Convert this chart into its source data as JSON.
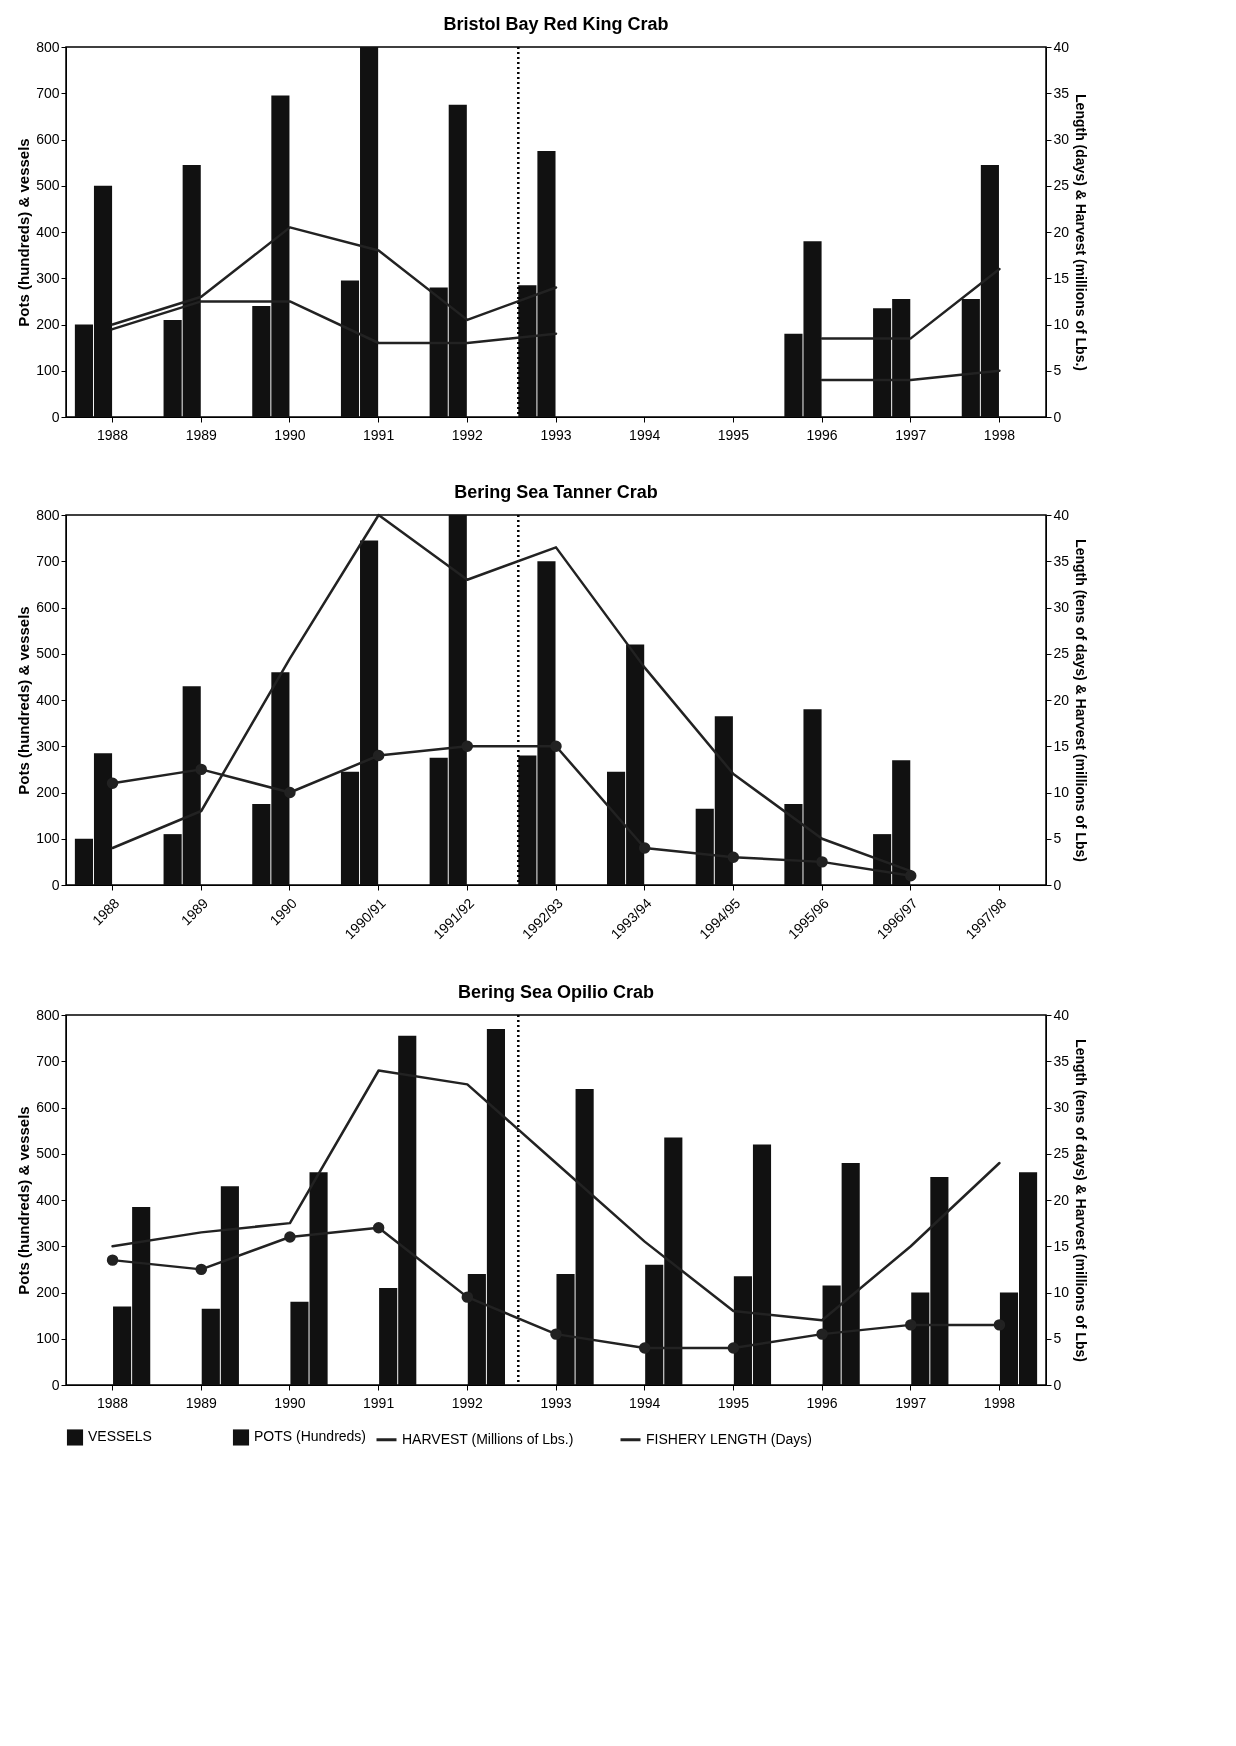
{
  "chart_data": [
    {
      "type": "bar",
      "title": "Bristol Bay Red King Crab",
      "ylabel": "Pots (hundreds) & vessels",
      "y2label": "Length (days) & Harvest (millions of Lbs.)",
      "categories": [
        "1988",
        "1989",
        "1990",
        "1991",
        "1992",
        "1993",
        "1994",
        "1995",
        "1996",
        "1997",
        "1998"
      ],
      "ylim": [
        0,
        800
      ],
      "yticks": [
        0,
        100,
        200,
        300,
        400,
        500,
        600,
        700,
        800
      ],
      "y2lim": [
        0,
        40
      ],
      "y2ticks": [
        0,
        5,
        10,
        15,
        20,
        25,
        30,
        35,
        40
      ],
      "series": [
        {
          "type": "bar",
          "color": "#111111",
          "values": [
            200,
            210,
            240,
            295,
            280,
            285,
            null,
            null,
            180,
            235,
            255
          ]
        },
        {
          "type": "bar",
          "color": "#111111",
          "values": [
            500,
            545,
            695,
            800,
            675,
            575,
            null,
            null,
            380,
            255,
            545
          ]
        },
        {
          "type": "line",
          "axis": "y2",
          "color": "#222222",
          "values": [
            10,
            13,
            20.5,
            18,
            10.5,
            14,
            null,
            null,
            8.5,
            8.5,
            16
          ]
        },
        {
          "type": "line",
          "axis": "y2",
          "color": "#222222",
          "values": [
            9.5,
            12.5,
            12.5,
            8,
            8,
            9,
            null,
            null,
            4,
            4,
            5
          ]
        }
      ],
      "ref_lines": [
        {
          "axis": "x",
          "value": "1993",
          "line_style": "dotted",
          "color": "#000000"
        }
      ]
    },
    {
      "type": "bar",
      "title": "Bering Sea Tanner Crab",
      "ylabel": "Pots (hundreds) & vessels",
      "y2label": "Length (tens of days) & Harvest (millions of Lbs)",
      "categories": [
        "1988",
        "1989",
        "1990",
        "1990/91",
        "1991/92",
        "1992/93",
        "1993/94",
        "1994/95",
        "1995/96",
        "1996/97",
        "1997/98"
      ],
      "ylim": [
        0,
        800
      ],
      "yticks": [
        0,
        100,
        200,
        300,
        400,
        500,
        600,
        700,
        800
      ],
      "y2lim": [
        0,
        40
      ],
      "y2ticks": [
        0,
        5,
        10,
        15,
        20,
        25,
        30,
        35,
        40
      ],
      "series": [
        {
          "type": "bar",
          "color": "#111111",
          "values": [
            100,
            110,
            175,
            245,
            275,
            280,
            245,
            165,
            175,
            110,
            null
          ]
        },
        {
          "type": "bar",
          "color": "#111111",
          "values": [
            285,
            430,
            460,
            745,
            800,
            700,
            520,
            365,
            380,
            270,
            null
          ]
        },
        {
          "type": "line",
          "axis": "y2",
          "color": "#222222",
          "values": [
            4,
            8,
            24.5,
            40,
            33,
            36.5,
            23.5,
            12,
            5,
            1.5,
            null
          ]
        },
        {
          "type": "line",
          "axis": "y2",
          "color": "#222222",
          "marker": "circle",
          "values": [
            11,
            12.5,
            10,
            14,
            15,
            15,
            4,
            3,
            2.5,
            1,
            null
          ]
        }
      ],
      "ref_lines": [
        {
          "axis": "x",
          "value": "1992/93",
          "line_style": "dotted",
          "color": "#000000"
        }
      ]
    },
    {
      "type": "bar",
      "title": "Bering Sea Opilio Crab",
      "ylabel": "Pots (hundreds) & vessels",
      "y2label": "Length (tens of days) & Harvest (millions of Lbs)",
      "categories": [
        "1988",
        "1989",
        "1990",
        "1991",
        "1992",
        "1993",
        "1994",
        "1995",
        "1996",
        "1997",
        "1998"
      ],
      "ylim": [
        0,
        800
      ],
      "yticks": [
        0,
        100,
        200,
        300,
        400,
        500,
        600,
        700,
        800
      ],
      "y2lim": [
        0,
        40
      ],
      "y2ticks": [
        0,
        5,
        10,
        15,
        20,
        25,
        30,
        35,
        40
      ],
      "legend": "bottom",
      "series": [
        {
          "name": "VESSELS",
          "type": "bar",
          "color": "#111111",
          "values": [
            170,
            165,
            180,
            210,
            240,
            240,
            260,
            235,
            215,
            200,
            200
          ]
        },
        {
          "name": "POTS (Hundreds)",
          "type": "bar",
          "color": "#111111",
          "values": [
            385,
            430,
            460,
            755,
            770,
            640,
            535,
            520,
            480,
            450,
            460
          ]
        },
        {
          "name": "HARVEST (Millions of Lbs.)",
          "type": "line",
          "axis": "y2",
          "color": "#222222",
          "values": [
            15,
            16.5,
            17.5,
            34,
            32.5,
            24,
            15.5,
            8,
            7,
            15,
            24
          ]
        },
        {
          "name": "FISHERY LENGTH (Days)",
          "type": "line",
          "axis": "y2",
          "color": "#222222",
          "marker": "circle",
          "values": [
            13.5,
            12.5,
            16,
            17,
            9.5,
            5.5,
            4,
            4,
            5.5,
            6.5,
            6.5
          ]
        }
      ],
      "ref_lines": [
        {
          "axis": "x",
          "value": "1993",
          "line_style": "dotted",
          "color": "#000000"
        }
      ]
    }
  ]
}
